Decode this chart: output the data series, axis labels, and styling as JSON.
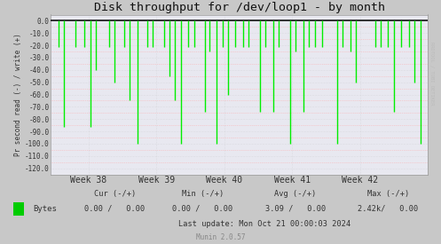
{
  "title": "Disk throughput for /dev/loop1 - by month",
  "ylabel": "Pr second read (-) / write (+)",
  "xlabel_ticks": [
    "Week 38",
    "Week 39",
    "Week 40",
    "Week 41",
    "Week 42"
  ],
  "xlabel_tick_positions": [
    0.1,
    0.28,
    0.46,
    0.64,
    0.82
  ],
  "ylim": [
    -125,
    5
  ],
  "yticks": [
    0.0,
    -10.0,
    -20.0,
    -30.0,
    -40.0,
    -50.0,
    -60.0,
    -70.0,
    -80.0,
    -90.0,
    -100.0,
    -110.0,
    -120.0
  ],
  "bg_color": "#c8c8c8",
  "plot_bg_color": "#e8e8f0",
  "grid_color_minor": "#ffaaaa",
  "grid_color_major": "#bbbbbb",
  "line_color": "#00ee00",
  "zero_line_color": "#111111",
  "spike_x": [
    0.02,
    0.035,
    0.065,
    0.09,
    0.105,
    0.12,
    0.155,
    0.17,
    0.195,
    0.21,
    0.23,
    0.255,
    0.27,
    0.3,
    0.315,
    0.33,
    0.345,
    0.365,
    0.38,
    0.41,
    0.42,
    0.44,
    0.455,
    0.47,
    0.49,
    0.51,
    0.525,
    0.555,
    0.57,
    0.59,
    0.605,
    0.635,
    0.65,
    0.67,
    0.685,
    0.7,
    0.72,
    0.76,
    0.775,
    0.795,
    0.81,
    0.86,
    0.875,
    0.895,
    0.91,
    0.93,
    0.95,
    0.965,
    0.98
  ],
  "spike_y": [
    -21,
    -86,
    -21,
    -21,
    -86,
    -40,
    -21,
    -50,
    -21,
    -65,
    -100,
    -21,
    -21,
    -21,
    -45,
    -65,
    -100,
    -21,
    -21,
    -74,
    -25,
    -100,
    -21,
    -60,
    -21,
    -21,
    -21,
    -74,
    -21,
    -74,
    -21,
    -100,
    -25,
    -74,
    -21,
    -21,
    -21,
    -100,
    -21,
    -25,
    -50,
    -21,
    -21,
    -21,
    -74,
    -21,
    -21,
    -50,
    -100
  ],
  "legend_label": "Bytes",
  "legend_color": "#00cc00",
  "cur_label": "Cur (-/+)",
  "min_label": "Min (-/+)",
  "avg_label": "Avg (-/+)",
  "max_label": "Max (-/+)",
  "cur_val": "0.00 /   0.00",
  "min_val": "0.00 /   0.00",
  "avg_val": "3.09 /   0.00",
  "max_val": "2.42k/   0.00",
  "last_update": "Last update: Mon Oct 21 00:00:03 2024",
  "munin_version": "Munin 2.0.57",
  "rrdtool_text": "RRDTOOL / TOBI OETIKER"
}
